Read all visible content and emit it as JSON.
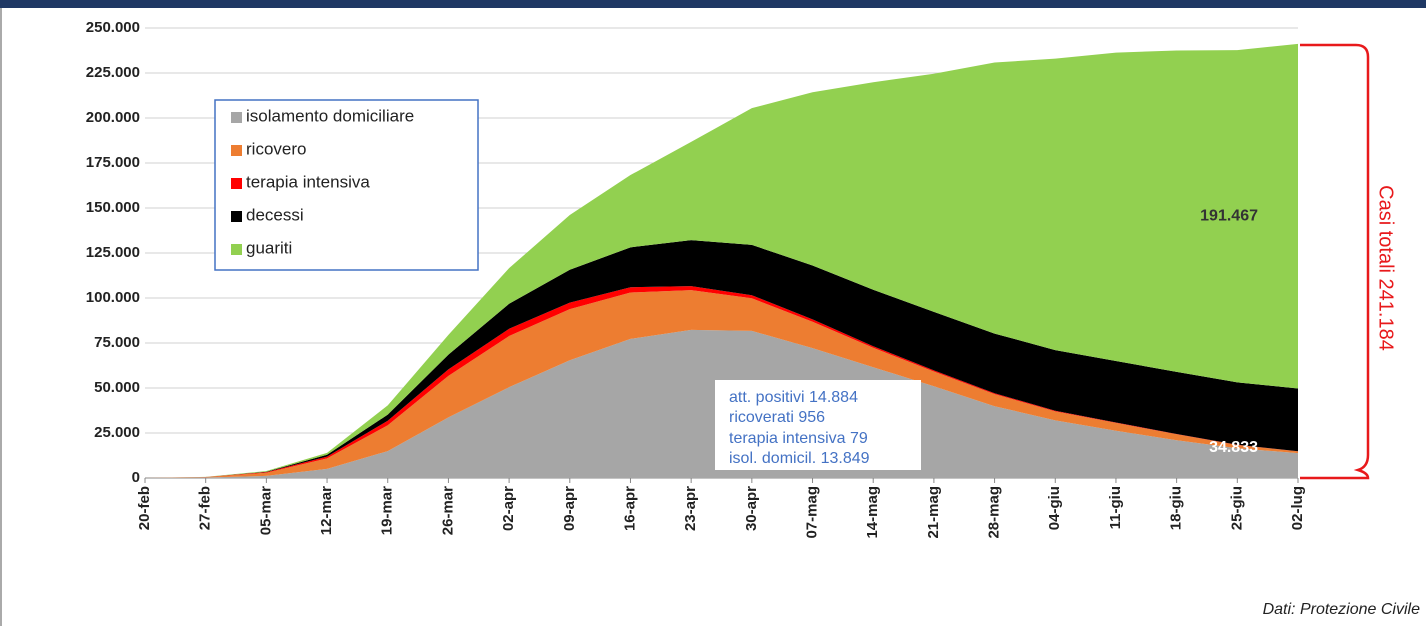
{
  "chart_data": {
    "type": "stacked-area",
    "categories": [
      "20-feb",
      "27-feb",
      "05-mar",
      "12-mar",
      "19-mar",
      "26-mar",
      "02-apr",
      "09-apr",
      "16-apr",
      "23-apr",
      "30-apr",
      "07-mag",
      "14-mag",
      "21-mag",
      "28-mag",
      "04-giu",
      "11-giu",
      "18-giu",
      "25-giu",
      "02-lug"
    ],
    "series": [
      {
        "name": "isolamento domiciliare",
        "color": "#a6a6a6",
        "values": [
          0,
          300,
          1155,
          5036,
          14935,
          33648,
          50456,
          65392,
          77257,
          82286,
          81708,
          72157,
          61553,
          50966,
          39893,
          32030,
          26274,
          20972,
          16496,
          13849
        ]
      },
      {
        "name": "ricovero",
        "color": "#ed7d31",
        "values": [
          0,
          200,
          1790,
          5838,
          14363,
          23112,
          28403,
          28399,
          25786,
          22068,
          18149,
          14636,
          10792,
          8185,
          6680,
          5002,
          4320,
          3301,
          1833,
          956
        ]
      },
      {
        "name": "terapia intensiva",
        "color": "#ff0000",
        "values": [
          0,
          50,
          351,
          1028,
          2498,
          3612,
          4035,
          3605,
          2936,
          2267,
          1694,
          1311,
          855,
          640,
          505,
          353,
          249,
          168,
          115,
          79
        ]
      },
      {
        "name": "decessi",
        "color": "#000000",
        "values": [
          0,
          20,
          148,
          1016,
          3405,
          8165,
          13915,
          18279,
          22170,
          25549,
          27967,
          29958,
          31368,
          32486,
          33142,
          33689,
          34167,
          34514,
          34708,
          34833
        ],
        "value_labels": [
          null,
          null,
          null,
          null,
          null,
          null,
          null,
          null,
          null,
          null,
          null,
          null,
          null,
          null,
          null,
          null,
          null,
          null,
          null,
          "34.833"
        ]
      },
      {
        "name": "guariti",
        "color": "#92d050",
        "values": [
          0,
          50,
          414,
          1045,
          5129,
          10950,
          19758,
          30455,
          40164,
          54543,
          75945,
          96276,
          115288,
          132282,
          150604,
          161895,
          171338,
          178526,
          184585,
          191467
        ],
        "value_labels": [
          null,
          null,
          null,
          null,
          null,
          null,
          null,
          null,
          null,
          null,
          null,
          null,
          null,
          null,
          null,
          null,
          null,
          null,
          null,
          "191.467"
        ]
      }
    ],
    "ylim": [
      0,
      250000
    ],
    "yticks": [
      0,
      {
        "value": 25000,
        "label": "25.000"
      },
      {
        "value": 50000,
        "label": "50.000"
      },
      {
        "value": 75000,
        "label": "75.000"
      },
      {
        "value": 100000,
        "label": "100.000"
      },
      {
        "value": 125000,
        "label": "125.000"
      },
      {
        "value": 150000,
        "label": "150.000"
      },
      {
        "value": 175000,
        "label": "175.000"
      },
      {
        "value": 200000,
        "label": "200.000"
      },
      {
        "value": 225000,
        "label": "225.000"
      },
      {
        "value": 250000,
        "label": "250.000"
      }
    ],
    "grid": true,
    "annotations": [
      "att. positivi 14.884",
      "ricoverati 956",
      "terapia intensiva 79",
      "isol. domicil. 13.849"
    ],
    "total_label": "Casi totali 241.184",
    "source": "Dati: Protezione Civile"
  }
}
